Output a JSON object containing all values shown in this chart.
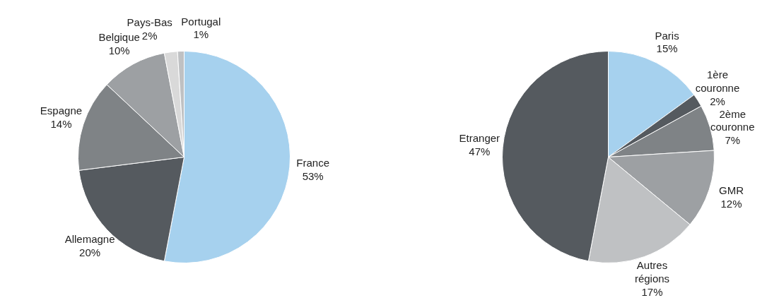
{
  "chart_data": [
    {
      "type": "pie",
      "categories": [
        "France",
        "Allemagne",
        "Espagne",
        "Belgique",
        "Pays-Bas",
        "Portugal"
      ],
      "values": [
        53,
        20,
        14,
        10,
        2,
        1
      ],
      "value_labels": [
        "53%",
        "20%",
        "14%",
        "10%",
        "2%",
        "1%"
      ],
      "colors": [
        "#a6d1ee",
        "#555a5f",
        "#7f8386",
        "#9da0a3",
        "#d9d9d9",
        "#bfc1c3"
      ]
    },
    {
      "type": "pie",
      "categories": [
        "Paris",
        "1ère couronne",
        "2ème couronne",
        "GMR",
        "Autres régions",
        "Etranger"
      ],
      "values": [
        15,
        2,
        7,
        12,
        17,
        47
      ],
      "value_labels": [
        "15%",
        "2%",
        "7%",
        "12%",
        "17%",
        "47%"
      ],
      "colors": [
        "#a6d1ee",
        "#555a5f",
        "#7f8386",
        "#9da0a3",
        "#bfc1c3",
        "#555a5f"
      ]
    }
  ]
}
